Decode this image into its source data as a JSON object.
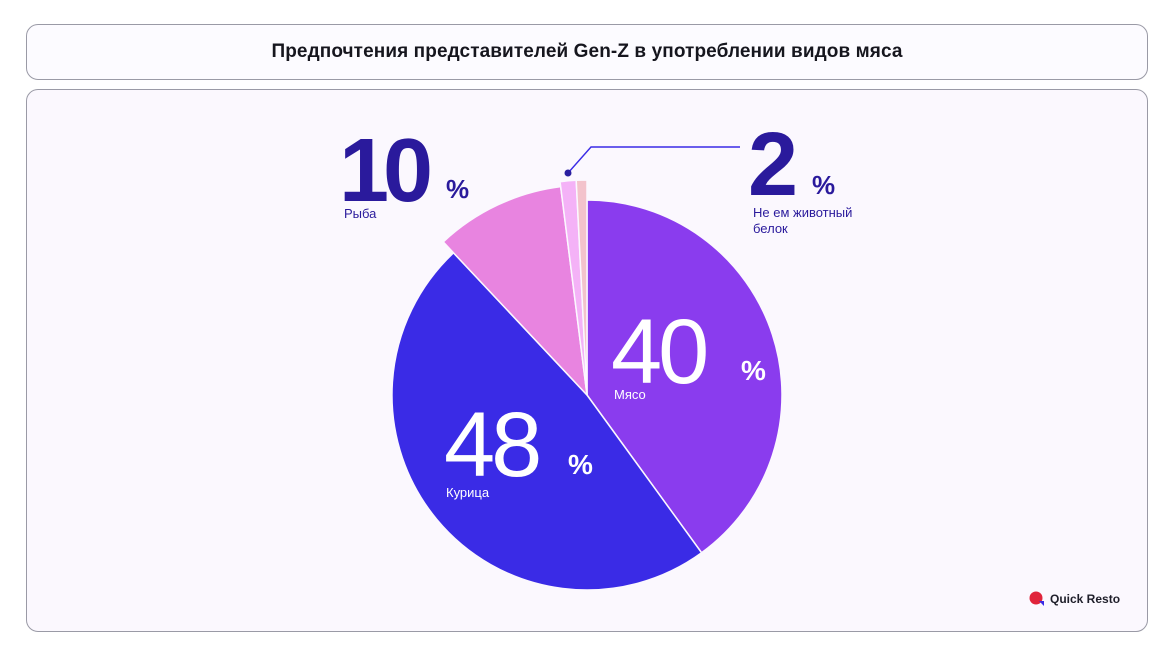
{
  "header": {
    "title": "Предпочтения представителей Gen-Z в употреблении видов мяса"
  },
  "chart_data": {
    "type": "pie",
    "title": "Предпочтения представителей Gen-Z в употреблении видов мяса",
    "unit": "%",
    "start_angle_deg": 0,
    "direction": "clockwise",
    "slices": [
      {
        "label": "Мясо",
        "value": 40,
        "color": "#8a3cee"
      },
      {
        "label": "Курица",
        "value": 48,
        "color": "#3a2be6"
      },
      {
        "label": "Рыба",
        "value": 10,
        "color": "#e884e0"
      },
      {
        "label": "",
        "value": 1.2,
        "color": "#f4b2f7"
      },
      {
        "label": "Не ем животный белок",
        "value": 0.8,
        "color": "#f3c3cc"
      }
    ],
    "annotations": [
      {
        "slice": "Мясо",
        "text": "40",
        "suffix": "%",
        "label_lines": [
          "Мясо"
        ]
      },
      {
        "slice": "Курица",
        "text": "48",
        "suffix": "%",
        "label_lines": [
          "Курица"
        ]
      },
      {
        "slice": "Рыба",
        "text": "10",
        "suffix": "%",
        "label_lines": [
          "Рыба"
        ]
      },
      {
        "slice": "Не ем животный белок",
        "text": "2",
        "suffix": "%",
        "label_lines": [
          "Не ем животный",
          "белок"
        ]
      }
    ],
    "legend": "none"
  },
  "brand": {
    "logo_text": "Quick Resto",
    "logo_color": "#e0243b",
    "accent_color": "#3a2be6"
  }
}
